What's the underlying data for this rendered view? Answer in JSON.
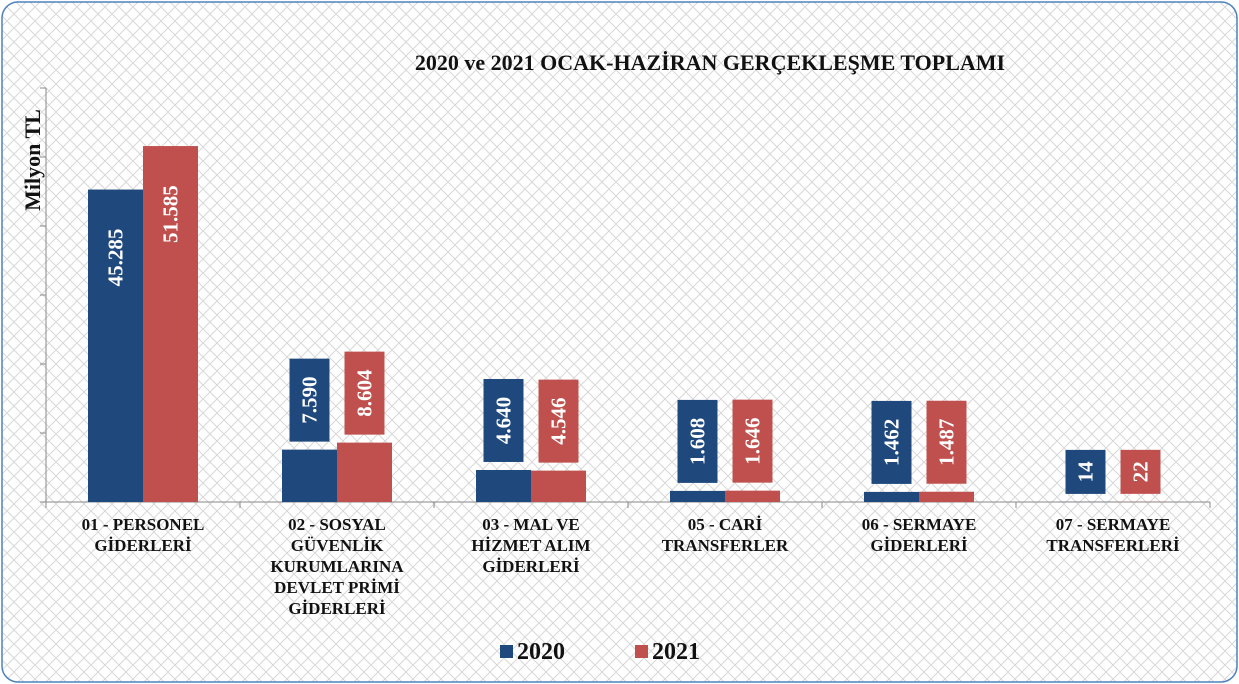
{
  "chart_data": {
    "type": "bar",
    "title": "2020 ve 2021 OCAK-HAZİRAN GERÇEKLEŞME TOPLAMI",
    "y_label": "Milyon TL",
    "categories": [
      "01 - PERSONEL GİDERLERİ",
      "02 - SOSYAL GÜVENLİK KURUMLARINA DEVLET PRİMİ GİDERLERİ",
      "03 - MAL VE HİZMET ALIM GİDERLERİ",
      "05 - CARİ TRANSFERLER",
      "06 - SERMAYE GİDERLERİ",
      "07 - SERMAYE TRANSFERLERİ"
    ],
    "series": [
      {
        "name": "2020",
        "color": "#1f497d",
        "values": [
          45285,
          7590,
          4640,
          1608,
          1462,
          14
        ],
        "value_labels": [
          "45.285",
          "7.590",
          "4.640",
          "1.608",
          "1.462",
          "14"
        ]
      },
      {
        "name": "2021",
        "color": "#c0504d",
        "values": [
          51585,
          8604,
          4546,
          1646,
          1487,
          22
        ],
        "value_labels": [
          "51.585",
          "8.604",
          "4.546",
          "1.646",
          "1.487",
          "22"
        ]
      }
    ],
    "ylim": [
      0,
      60000
    ],
    "yticks": [
      0,
      10000,
      20000,
      30000,
      40000,
      50000,
      60000
    ],
    "legend": "bottom"
  }
}
